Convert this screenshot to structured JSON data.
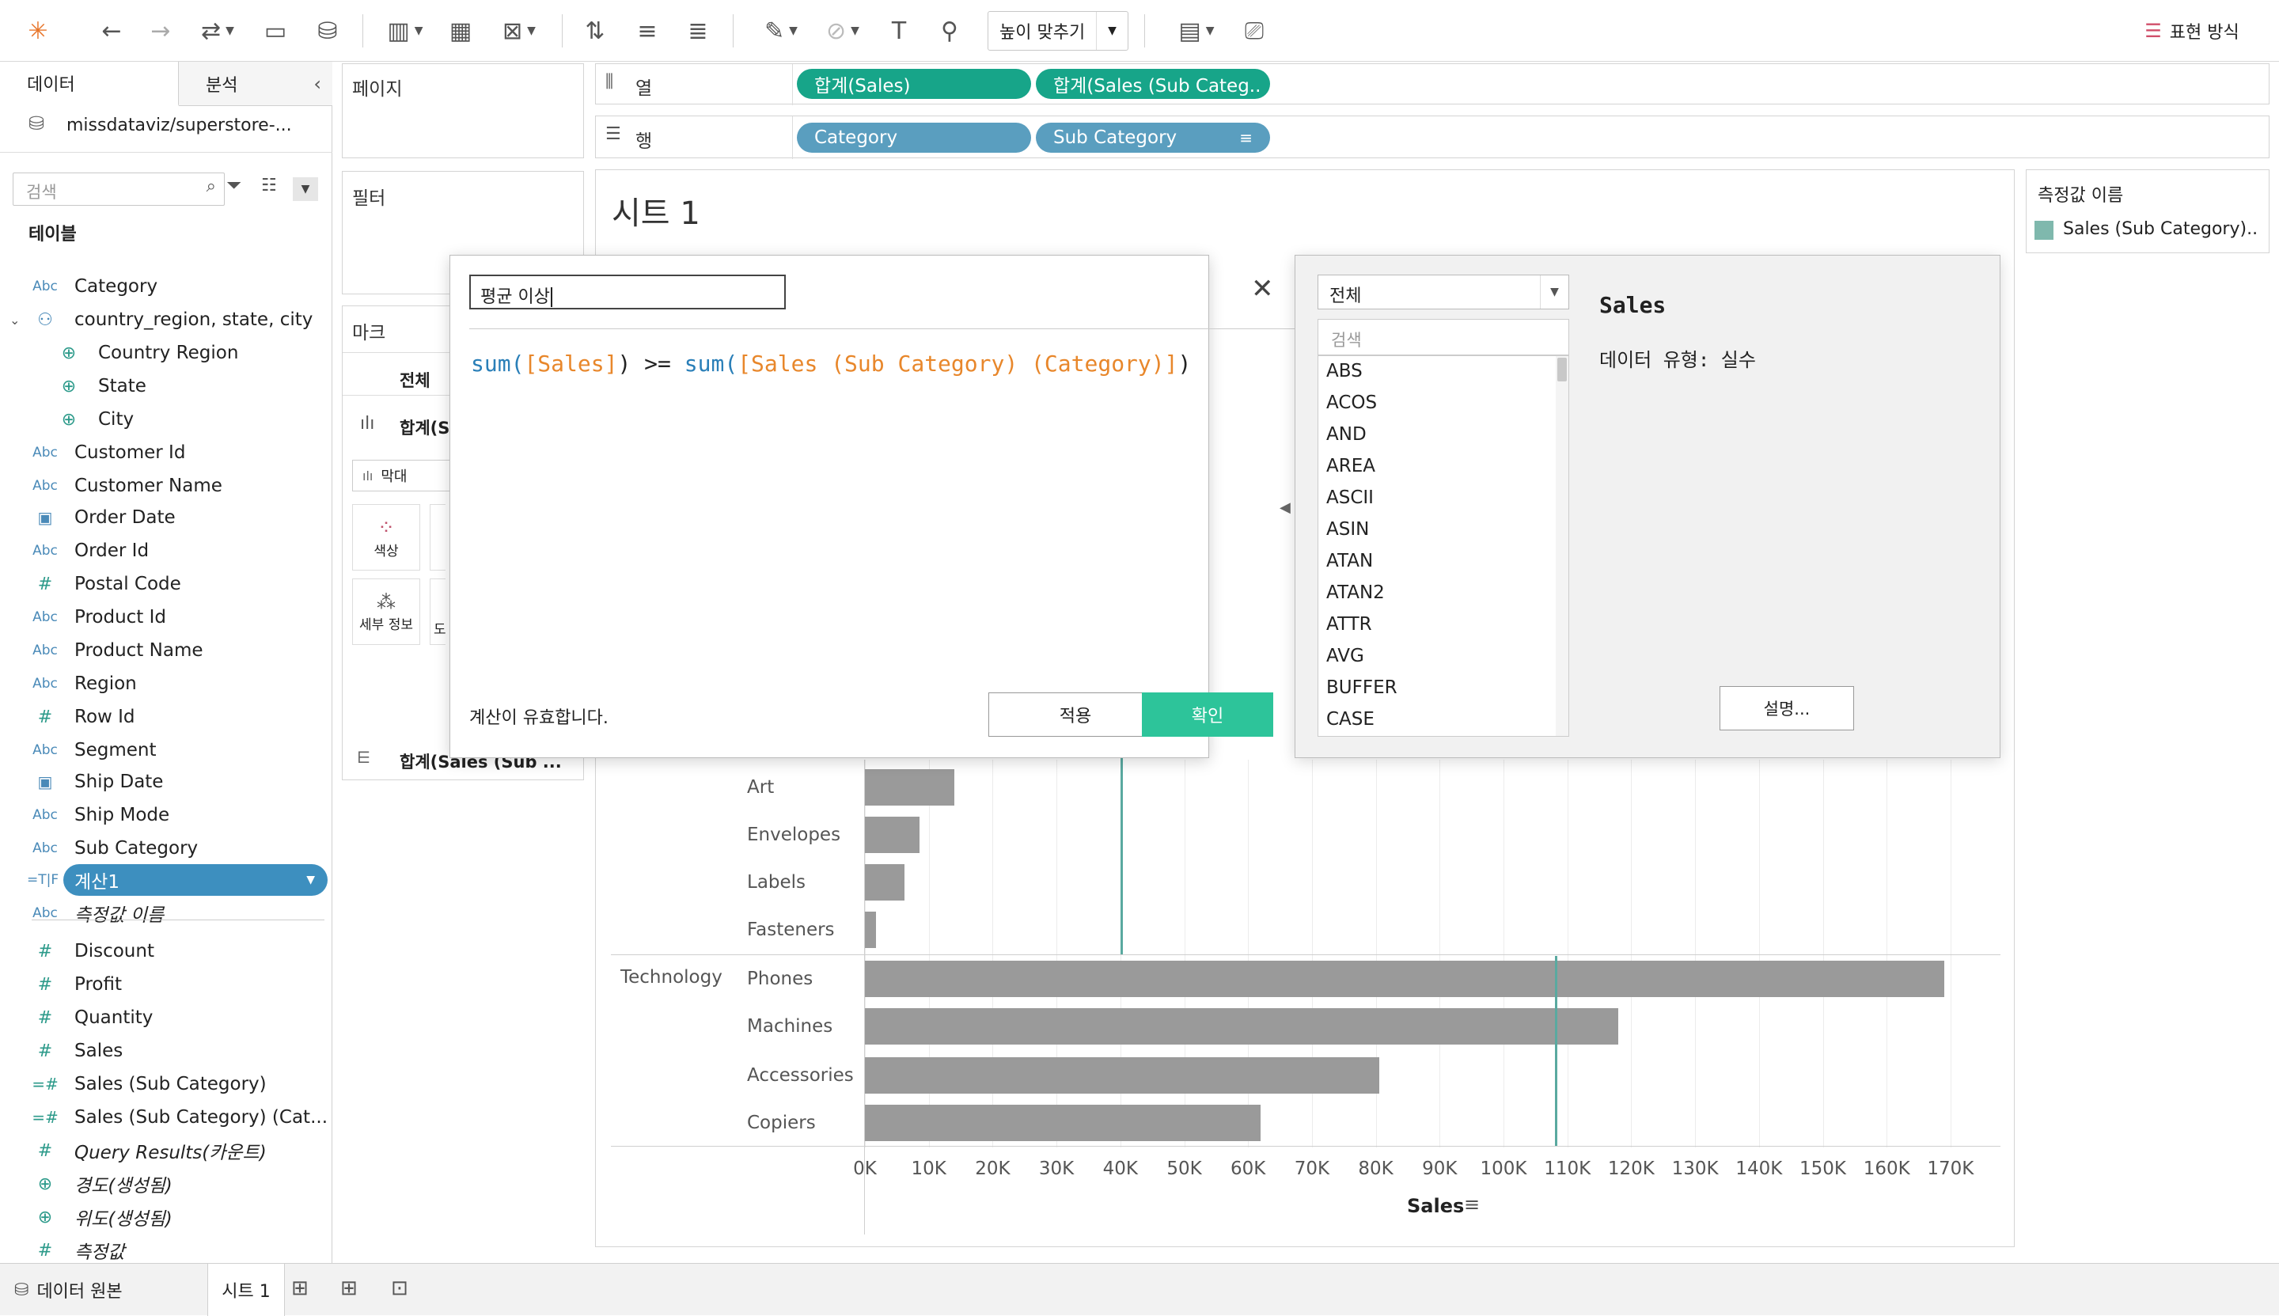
{
  "toolbar": {
    "fit_label": "높이 맞추기",
    "show_me_label": "표현 방식"
  },
  "data_pane": {
    "tab_data": "데이터",
    "tab_analysis": "분석",
    "datasource": "missdataviz/superstore-...",
    "search_placeholder": "검색",
    "tables_heading": "테이블",
    "fields": [
      {
        "type": "Abc",
        "name": "Category"
      },
      {
        "type": "hier",
        "name": "country_region, state, city"
      },
      {
        "type": "geo",
        "name": "Country Region"
      },
      {
        "type": "geo",
        "name": "State"
      },
      {
        "type": "geo",
        "name": "City"
      },
      {
        "type": "Abc",
        "name": "Customer Id"
      },
      {
        "type": "Abc",
        "name": "Customer Name"
      },
      {
        "type": "date",
        "name": "Order Date"
      },
      {
        "type": "Abc",
        "name": "Order Id"
      },
      {
        "type": "#",
        "name": "Postal Code"
      },
      {
        "type": "Abc",
        "name": "Product Id"
      },
      {
        "type": "Abc",
        "name": "Product Name"
      },
      {
        "type": "Abc",
        "name": "Region"
      },
      {
        "type": "#",
        "name": "Row Id"
      },
      {
        "type": "Abc",
        "name": "Segment"
      },
      {
        "type": "date",
        "name": "Ship Date"
      },
      {
        "type": "Abc",
        "name": "Ship Mode"
      },
      {
        "type": "Abc",
        "name": "Sub Category"
      },
      {
        "type": "=T|F",
        "name": "계산1"
      },
      {
        "type": "Abc",
        "name": "측정값 이름"
      },
      {
        "type": "#",
        "name": "Discount"
      },
      {
        "type": "#",
        "name": "Profit"
      },
      {
        "type": "#",
        "name": "Quantity"
      },
      {
        "type": "#",
        "name": "Sales"
      },
      {
        "type": "=#",
        "name": "Sales (Sub Category)"
      },
      {
        "type": "=#",
        "name": "Sales (Sub Category) (Cat..."
      },
      {
        "type": "#",
        "name": "Query Results(카운트)"
      },
      {
        "type": "geo",
        "name": "경도(생성됨)"
      },
      {
        "type": "geo",
        "name": "위도(생성됨)"
      },
      {
        "type": "#",
        "name": "측정값"
      }
    ]
  },
  "shelves": {
    "pages_label": "페이지",
    "filters_label": "필터",
    "marks_label": "마크",
    "marks_all": "전체",
    "marks_sum": "합계(S",
    "mark_type": "막대",
    "color_label": "색상",
    "detail_label": "세부 정보",
    "marks_extra": "도",
    "marks_bottom": "합계(Sales (Sub ...",
    "columns_label": "열",
    "rows_label": "행",
    "columns_pills": [
      "합계(Sales)",
      "합계(Sales (Sub Categ.."
    ],
    "rows_pills": [
      "Category",
      "Sub Category"
    ]
  },
  "sheet": {
    "title": "시트 1",
    "legend_title": "측정값 이름",
    "legend_item": "Sales (Sub Category)..",
    "legend_color": "#7fb8ad"
  },
  "calc_dialog": {
    "name": "평균 이상",
    "formula": {
      "fn1": "sum(",
      "field1": "[Sales]",
      "op": ") >= ",
      "fn2": "sum(",
      "field2": "[Sales (Sub Category) (Category)]",
      "close": ")"
    },
    "status": "계산이 유효합니다.",
    "apply": "적용",
    "ok": "확인"
  },
  "function_panel": {
    "category": "전체",
    "search_placeholder": "검색",
    "functions": [
      "ABS",
      "ACOS",
      "AND",
      "AREA",
      "ASCII",
      "ASIN",
      "ATAN",
      "ATAN2",
      "ATTR",
      "AVG",
      "BUFFER",
      "CASE"
    ],
    "detail_title": "Sales",
    "detail_type": "데이터 유형: 실수",
    "describe_button": "설명..."
  },
  "chart_data": {
    "type": "bar",
    "xlabel": "Sales",
    "x_ticks": [
      "0K",
      "10K",
      "20K",
      "30K",
      "40K",
      "50K",
      "60K",
      "70K",
      "80K",
      "90K",
      "100K",
      "110K",
      "120K",
      "130K",
      "140K",
      "150K",
      "160K",
      "170K"
    ],
    "xlim": [
      0,
      175000
    ],
    "groups": [
      {
        "category": "",
        "items": [
          {
            "sub": "Art",
            "value": 14000
          },
          {
            "sub": "Envelopes",
            "value": 8500
          },
          {
            "sub": "Labels",
            "value": 6200
          },
          {
            "sub": "Fasteners",
            "value": 1700
          }
        ],
        "ref_line": 40000
      },
      {
        "category": "Technology",
        "items": [
          {
            "sub": "Phones",
            "value": 169000
          },
          {
            "sub": "Machines",
            "value": 118000
          },
          {
            "sub": "Accessories",
            "value": 80500
          },
          {
            "sub": "Copiers",
            "value": 62000
          }
        ],
        "ref_line": 108000
      }
    ],
    "bar_color": "#9a9a9a",
    "ref_color": "#5aa9a0"
  },
  "bottom_bar": {
    "datasource_tab": "데이터 원본",
    "sheet_tab": "시트 1"
  }
}
